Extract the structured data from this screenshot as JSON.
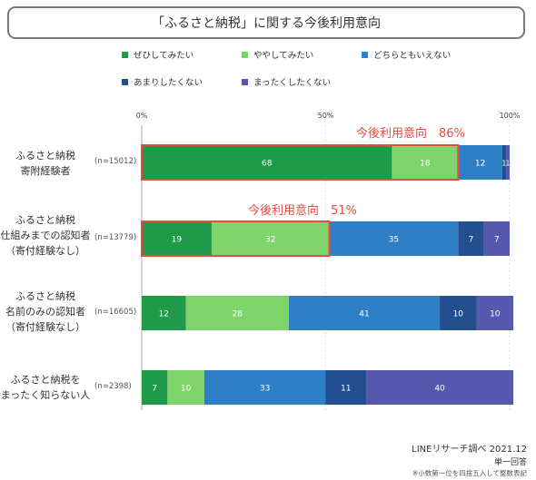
{
  "title": "「ふるさと納税」に関する今後利用意向",
  "legend": [
    {
      "name": "ぜひしてみたい",
      "color": "#1e9a48"
    },
    {
      "name": "ややしてみたい",
      "color": "#7fd36b"
    },
    {
      "name": "どちらともいえない",
      "color": "#2f7fc6"
    },
    {
      "name": "あまりしたくない",
      "color": "#234f8e"
    },
    {
      "name": "まったくしたくない",
      "color": "#5558ad"
    }
  ],
  "annotations": [
    {
      "text": "今後利用意向　86%",
      "row": 0
    },
    {
      "text": "今後利用意向　51%",
      "row": 1
    }
  ],
  "footer": {
    "source": "LINEリサーチ調べ 2021.12",
    "answer_type": "単一回答",
    "note": "※小数第一位を四捨五入して整数表記"
  },
  "chart_data": {
    "type": "bar",
    "orientation": "horizontal",
    "stacked": true,
    "xlim": [
      0,
      100
    ],
    "xticks": [
      "0%",
      "50%",
      "100%"
    ],
    "categories": [
      {
        "lines": [
          "ふるさと納税",
          "寄附経験者"
        ],
        "n": "(n=15012)"
      },
      {
        "lines": [
          "ふるさと納税",
          "仕組みまでの認知者",
          "（寄付経験なし）"
        ],
        "n": "(n=13779)"
      },
      {
        "lines": [
          "ふるさと納税",
          "名前のみの認知者",
          "（寄付経験なし）"
        ],
        "n": "(n=16605)"
      },
      {
        "lines": [
          "ふるさと納税を",
          "まったく知らない人"
        ],
        "n": "(n=2398)"
      }
    ],
    "series": [
      {
        "name": "ぜひしてみたい",
        "values": [
          68,
          19,
          12,
          7
        ]
      },
      {
        "name": "ややしてみたい",
        "values": [
          18,
          32,
          28,
          10
        ]
      },
      {
        "name": "どちらともいえない",
        "values": [
          12,
          35,
          41,
          33
        ]
      },
      {
        "name": "あまりしたくない",
        "values": [
          1,
          7,
          10,
          11
        ]
      },
      {
        "name": "まったくしたくない",
        "values": [
          1,
          7,
          10,
          40
        ]
      }
    ],
    "highlight": {
      "series": [
        0,
        1
      ],
      "rows": [
        0,
        1
      ],
      "color": "#e74c3c"
    }
  }
}
